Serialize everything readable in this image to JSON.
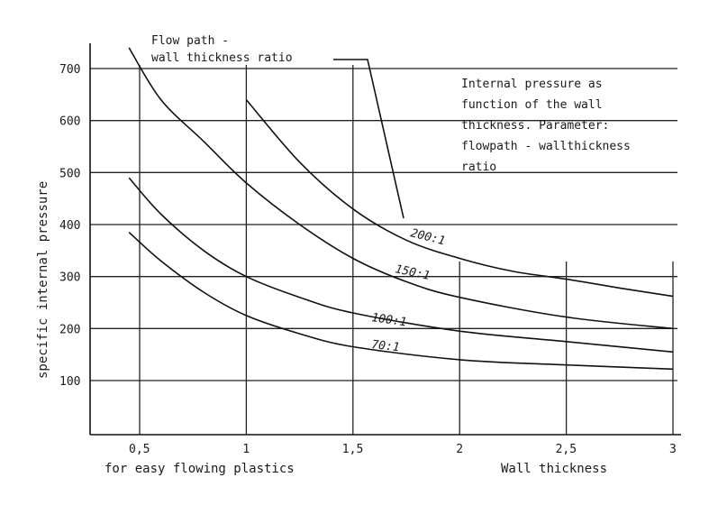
{
  "chart_data": {
    "type": "line",
    "title": "Internal pressure as function of the wall thickness. Parameter: flowpath - wallthickness ratio",
    "xlabel": "Wall thickness",
    "ylabel": "specific internal pressure",
    "footnote": "for easy flowing plastics",
    "legend_title": "Flow path - wall thickness ratio",
    "xlim": [
      0.25,
      3.05
    ],
    "ylim": [
      0,
      740
    ],
    "x_ticks": [
      {
        "value": 0.5,
        "label": "0,5"
      },
      {
        "value": 1,
        "label": "1"
      },
      {
        "value": 1.5,
        "label": "1,5"
      },
      {
        "value": 2,
        "label": "2"
      },
      {
        "value": 2.5,
        "label": "2,5"
      },
      {
        "value": 3,
        "label": "3"
      }
    ],
    "y_ticks": [
      {
        "value": 100,
        "label": "100"
      },
      {
        "value": 200,
        "label": "200"
      },
      {
        "value": 300,
        "label": "300"
      },
      {
        "value": 400,
        "label": "400"
      },
      {
        "value": 500,
        "label": "500"
      },
      {
        "value": 600,
        "label": "600"
      },
      {
        "value": 700,
        "label": "700"
      }
    ],
    "grid": true,
    "series": [
      {
        "name": "200:1",
        "x": [
          1.0,
          1.25,
          1.5,
          1.75,
          2.0,
          2.25,
          2.5,
          2.75,
          3.0
        ],
        "y": [
          640,
          520,
          430,
          370,
          335,
          310,
          295,
          278,
          262
        ],
        "label_at": [
          1.82,
          375
        ]
      },
      {
        "name": "150:1",
        "x": [
          0.45,
          0.6,
          0.8,
          1.0,
          1.25,
          1.5,
          1.75,
          2.0,
          2.5,
          3.0
        ],
        "y": [
          740,
          640,
          560,
          480,
          400,
          335,
          290,
          260,
          222,
          200
        ],
        "label_at": [
          1.7,
          300
        ]
      },
      {
        "name": "100:1",
        "x": [
          0.45,
          0.6,
          0.8,
          1.0,
          1.25,
          1.5,
          2.0,
          2.5,
          3.0
        ],
        "y": [
          490,
          420,
          350,
          300,
          260,
          230,
          195,
          175,
          155
        ],
        "label_at": [
          1.6,
          210
        ]
      },
      {
        "name": "70:1",
        "x": [
          0.45,
          0.6,
          0.8,
          1.0,
          1.25,
          1.5,
          2.0,
          2.5,
          3.0
        ],
        "y": [
          385,
          330,
          270,
          225,
          190,
          165,
          140,
          130,
          122
        ],
        "label_at": [
          1.6,
          165
        ]
      }
    ]
  },
  "annotation_lines": [
    "Internal pressure as",
    "function of the wall",
    "thickness. Parameter:",
    "flowpath - wallthickness",
    "ratio"
  ],
  "legend_lines": [
    "Flow path -",
    "wall thickness ratio"
  ],
  "curve_labels": [
    "200:1",
    "150:1",
    "100:1",
    "70:1"
  ],
  "footnote": "for easy flowing plastics",
  "xlabel": "Wall thickness",
  "ylabel": "specific internal pressure"
}
